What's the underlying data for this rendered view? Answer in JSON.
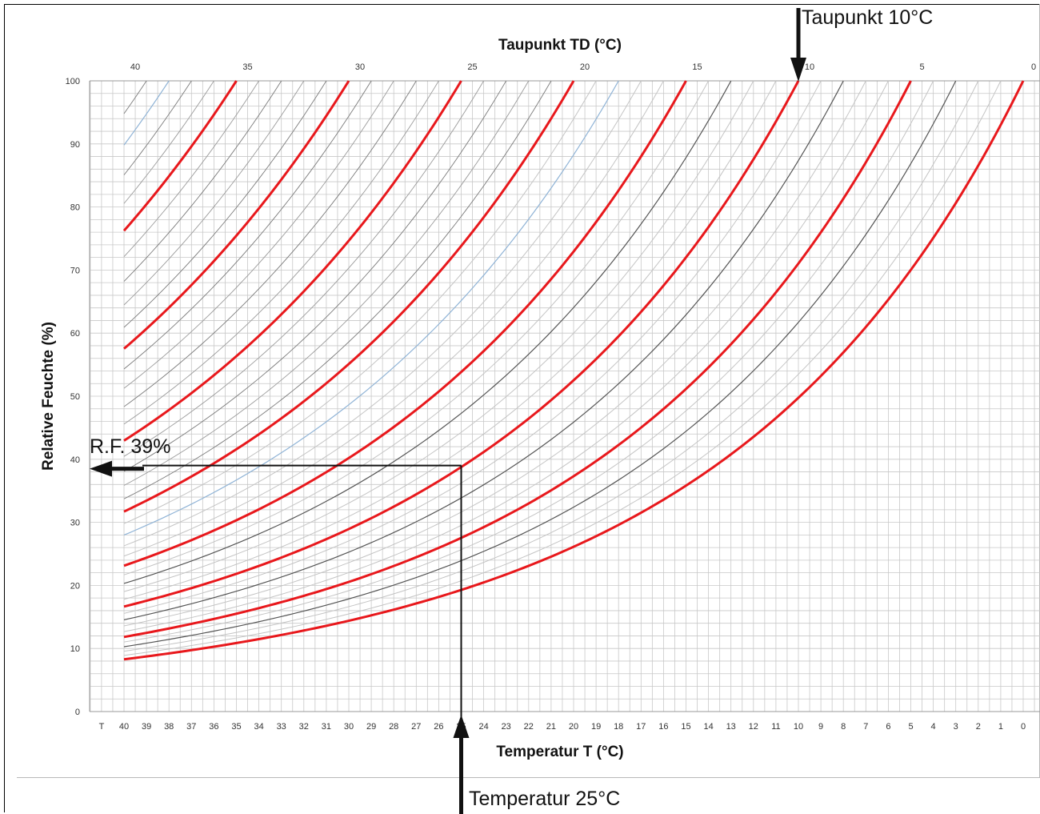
{
  "chart_data": {
    "type": "line",
    "top_axis": {
      "label": "Taupunkt TD (°C)",
      "ticks": [
        "40",
        "35",
        "30",
        "25",
        "20",
        "15",
        "10",
        "5",
        "0"
      ]
    },
    "xlabel": "Temperatur T (°C)",
    "ylabel": "Relative Feuchte (%)",
    "x_range": [
      40,
      0
    ],
    "x_ticks": [
      "T",
      "40",
      "39",
      "38",
      "37",
      "36",
      "35",
      "34",
      "33",
      "32",
      "31",
      "30",
      "29",
      "28",
      "27",
      "26",
      "25",
      "24",
      "23",
      "22",
      "21",
      "20",
      "19",
      "18",
      "17",
      "16",
      "15",
      "14",
      "13",
      "12",
      "11",
      "10",
      "9",
      "8",
      "7",
      "6",
      "5",
      "4",
      "3",
      "2",
      "1",
      "0"
    ],
    "ylim": [
      0,
      100
    ],
    "y_ticks": [
      0,
      10,
      20,
      30,
      40,
      50,
      60,
      70,
      80,
      90,
      100
    ],
    "grid": true,
    "series_description": "Lines of constant dew point from 0 °C to 40 °C in 1 °C steps; red lines every 5 °C",
    "dewpoint_min": 0,
    "dewpoint_max": 40,
    "dewpoint_step": 1,
    "highlight_every": 5,
    "colors": {
      "highlight": "#e8181c",
      "line_dark": "#555555",
      "line_light": "#c4c4c4",
      "line_blue": "#8fb3d6",
      "grid": "#c8c8c8",
      "axis": "#999999"
    },
    "example": {
      "temperature": 25,
      "dewpoint": 10,
      "relative_humidity": 39
    },
    "annotations": {
      "dewpoint": "Taupunkt 10°C",
      "rh": "R.F. 39%",
      "temperature": "Temperatur 25°C"
    }
  }
}
